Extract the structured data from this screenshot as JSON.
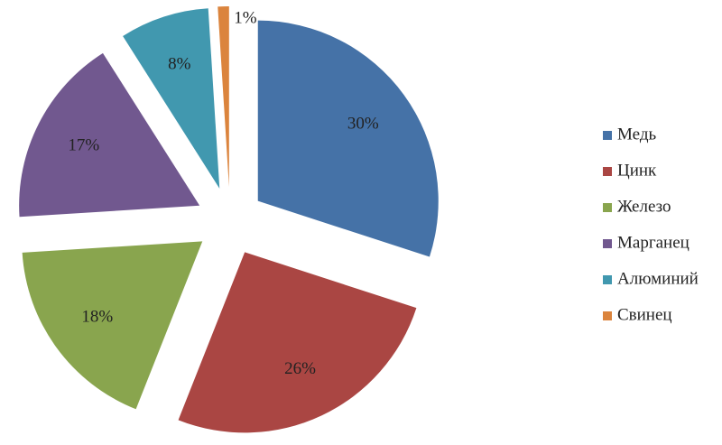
{
  "chart_data": {
    "type": "pie",
    "categories": [
      "Медь",
      "Цинк",
      "Железо",
      "Марганец",
      "Алюминий",
      "Свинец"
    ],
    "values": [
      30,
      26,
      18,
      17,
      8,
      1
    ],
    "value_labels": [
      "30%",
      "26%",
      "18%",
      "17%",
      "8%",
      "1%"
    ],
    "colors": [
      "#4572a7",
      "#aa4643",
      "#89a54e",
      "#71588f",
      "#4198af",
      "#db843d"
    ],
    "legend": "right"
  }
}
